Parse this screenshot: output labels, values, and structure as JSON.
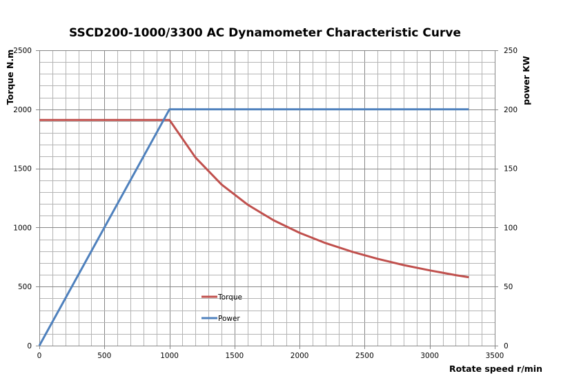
{
  "chart_data": {
    "type": "line",
    "title": "SSCD200-1000/3300 AC Dynamometer Characteristic Curve",
    "xlabel": "Rotate speed r/min",
    "ylabel": "Torque N.m",
    "y2label": "power KW",
    "xlim": [
      0,
      3500
    ],
    "ylim": [
      0,
      2500
    ],
    "y2lim": [
      0,
      250
    ],
    "x_ticks": [
      0,
      500,
      1000,
      1500,
      2000,
      2500,
      3000,
      3500
    ],
    "y_ticks": [
      0,
      500,
      1000,
      1500,
      2000,
      2500
    ],
    "y2_ticks": [
      0,
      50,
      100,
      150,
      200,
      250
    ],
    "x_minor_step": 100,
    "y_minor_step": 100,
    "grid": true,
    "legend_position": "center-left inside plot",
    "series": [
      {
        "name": "Torque",
        "axis": "left",
        "color": "#C0504D",
        "x": [
          0,
          1000,
          1200,
          1400,
          1600,
          1800,
          2000,
          2200,
          2400,
          2600,
          2800,
          3000,
          3200,
          3300
        ],
        "y": [
          1910,
          1910,
          1592,
          1364,
          1194,
          1061,
          955,
          868,
          796,
          735,
          682,
          637,
          597,
          579
        ]
      },
      {
        "name": "Power",
        "axis": "right",
        "color": "#4F81BD",
        "x": [
          0,
          1000,
          3300
        ],
        "y": [
          0,
          200,
          200
        ]
      }
    ]
  },
  "colors": {
    "grid_minor": "#b4b4b4",
    "grid_major": "#868686",
    "axis": "#868686"
  }
}
